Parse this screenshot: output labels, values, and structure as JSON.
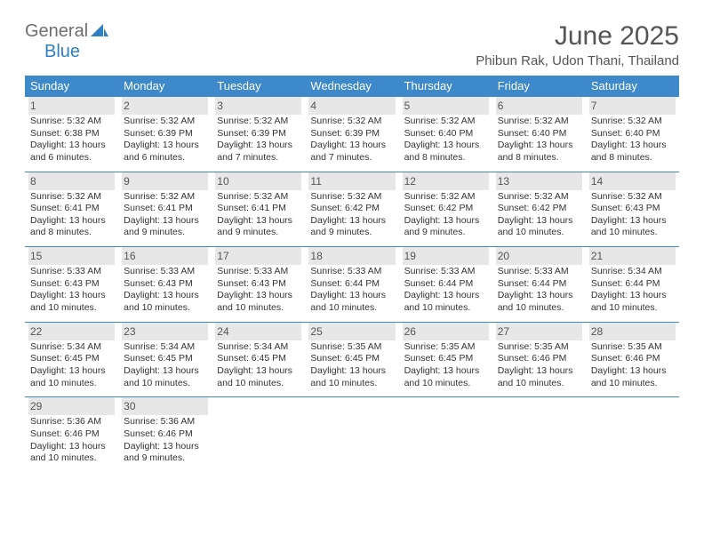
{
  "logo": {
    "text_general": "General",
    "text_blue": "Blue",
    "general_color": "#6f6f6f",
    "blue_color": "#2f7fc3",
    "icon_color": "#2f7fc3"
  },
  "title": "June 2025",
  "location": "Phibun Rak, Udon Thani, Thailand",
  "colors": {
    "header_bar": "#3d89c9",
    "day_header_bg": "#e7e7e7",
    "separator": "#3d89c9",
    "text_title": "#555555",
    "text_body": "#333333",
    "background": "#ffffff"
  },
  "fonts": {
    "title_size": 30,
    "location_size": 15,
    "weekday_size": 13,
    "daynum_size": 12,
    "body_size": 10.5
  },
  "weekdays": [
    "Sunday",
    "Monday",
    "Tuesday",
    "Wednesday",
    "Thursday",
    "Friday",
    "Saturday"
  ],
  "weeks": [
    [
      {
        "n": "1",
        "sunrise": "Sunrise: 5:32 AM",
        "sunset": "Sunset: 6:38 PM",
        "day1": "Daylight: 13 hours",
        "day2": "and 6 minutes."
      },
      {
        "n": "2",
        "sunrise": "Sunrise: 5:32 AM",
        "sunset": "Sunset: 6:39 PM",
        "day1": "Daylight: 13 hours",
        "day2": "and 6 minutes."
      },
      {
        "n": "3",
        "sunrise": "Sunrise: 5:32 AM",
        "sunset": "Sunset: 6:39 PM",
        "day1": "Daylight: 13 hours",
        "day2": "and 7 minutes."
      },
      {
        "n": "4",
        "sunrise": "Sunrise: 5:32 AM",
        "sunset": "Sunset: 6:39 PM",
        "day1": "Daylight: 13 hours",
        "day2": "and 7 minutes."
      },
      {
        "n": "5",
        "sunrise": "Sunrise: 5:32 AM",
        "sunset": "Sunset: 6:40 PM",
        "day1": "Daylight: 13 hours",
        "day2": "and 8 minutes."
      },
      {
        "n": "6",
        "sunrise": "Sunrise: 5:32 AM",
        "sunset": "Sunset: 6:40 PM",
        "day1": "Daylight: 13 hours",
        "day2": "and 8 minutes."
      },
      {
        "n": "7",
        "sunrise": "Sunrise: 5:32 AM",
        "sunset": "Sunset: 6:40 PM",
        "day1": "Daylight: 13 hours",
        "day2": "and 8 minutes."
      }
    ],
    [
      {
        "n": "8",
        "sunrise": "Sunrise: 5:32 AM",
        "sunset": "Sunset: 6:41 PM",
        "day1": "Daylight: 13 hours",
        "day2": "and 8 minutes."
      },
      {
        "n": "9",
        "sunrise": "Sunrise: 5:32 AM",
        "sunset": "Sunset: 6:41 PM",
        "day1": "Daylight: 13 hours",
        "day2": "and 9 minutes."
      },
      {
        "n": "10",
        "sunrise": "Sunrise: 5:32 AM",
        "sunset": "Sunset: 6:41 PM",
        "day1": "Daylight: 13 hours",
        "day2": "and 9 minutes."
      },
      {
        "n": "11",
        "sunrise": "Sunrise: 5:32 AM",
        "sunset": "Sunset: 6:42 PM",
        "day1": "Daylight: 13 hours",
        "day2": "and 9 minutes."
      },
      {
        "n": "12",
        "sunrise": "Sunrise: 5:32 AM",
        "sunset": "Sunset: 6:42 PM",
        "day1": "Daylight: 13 hours",
        "day2": "and 9 minutes."
      },
      {
        "n": "13",
        "sunrise": "Sunrise: 5:32 AM",
        "sunset": "Sunset: 6:42 PM",
        "day1": "Daylight: 13 hours",
        "day2": "and 10 minutes."
      },
      {
        "n": "14",
        "sunrise": "Sunrise: 5:32 AM",
        "sunset": "Sunset: 6:43 PM",
        "day1": "Daylight: 13 hours",
        "day2": "and 10 minutes."
      }
    ],
    [
      {
        "n": "15",
        "sunrise": "Sunrise: 5:33 AM",
        "sunset": "Sunset: 6:43 PM",
        "day1": "Daylight: 13 hours",
        "day2": "and 10 minutes."
      },
      {
        "n": "16",
        "sunrise": "Sunrise: 5:33 AM",
        "sunset": "Sunset: 6:43 PM",
        "day1": "Daylight: 13 hours",
        "day2": "and 10 minutes."
      },
      {
        "n": "17",
        "sunrise": "Sunrise: 5:33 AM",
        "sunset": "Sunset: 6:43 PM",
        "day1": "Daylight: 13 hours",
        "day2": "and 10 minutes."
      },
      {
        "n": "18",
        "sunrise": "Sunrise: 5:33 AM",
        "sunset": "Sunset: 6:44 PM",
        "day1": "Daylight: 13 hours",
        "day2": "and 10 minutes."
      },
      {
        "n": "19",
        "sunrise": "Sunrise: 5:33 AM",
        "sunset": "Sunset: 6:44 PM",
        "day1": "Daylight: 13 hours",
        "day2": "and 10 minutes."
      },
      {
        "n": "20",
        "sunrise": "Sunrise: 5:33 AM",
        "sunset": "Sunset: 6:44 PM",
        "day1": "Daylight: 13 hours",
        "day2": "and 10 minutes."
      },
      {
        "n": "21",
        "sunrise": "Sunrise: 5:34 AM",
        "sunset": "Sunset: 6:44 PM",
        "day1": "Daylight: 13 hours",
        "day2": "and 10 minutes."
      }
    ],
    [
      {
        "n": "22",
        "sunrise": "Sunrise: 5:34 AM",
        "sunset": "Sunset: 6:45 PM",
        "day1": "Daylight: 13 hours",
        "day2": "and 10 minutes."
      },
      {
        "n": "23",
        "sunrise": "Sunrise: 5:34 AM",
        "sunset": "Sunset: 6:45 PM",
        "day1": "Daylight: 13 hours",
        "day2": "and 10 minutes."
      },
      {
        "n": "24",
        "sunrise": "Sunrise: 5:34 AM",
        "sunset": "Sunset: 6:45 PM",
        "day1": "Daylight: 13 hours",
        "day2": "and 10 minutes."
      },
      {
        "n": "25",
        "sunrise": "Sunrise: 5:35 AM",
        "sunset": "Sunset: 6:45 PM",
        "day1": "Daylight: 13 hours",
        "day2": "and 10 minutes."
      },
      {
        "n": "26",
        "sunrise": "Sunrise: 5:35 AM",
        "sunset": "Sunset: 6:45 PM",
        "day1": "Daylight: 13 hours",
        "day2": "and 10 minutes."
      },
      {
        "n": "27",
        "sunrise": "Sunrise: 5:35 AM",
        "sunset": "Sunset: 6:46 PM",
        "day1": "Daylight: 13 hours",
        "day2": "and 10 minutes."
      },
      {
        "n": "28",
        "sunrise": "Sunrise: 5:35 AM",
        "sunset": "Sunset: 6:46 PM",
        "day1": "Daylight: 13 hours",
        "day2": "and 10 minutes."
      }
    ],
    [
      {
        "n": "29",
        "sunrise": "Sunrise: 5:36 AM",
        "sunset": "Sunset: 6:46 PM",
        "day1": "Daylight: 13 hours",
        "day2": "and 10 minutes."
      },
      {
        "n": "30",
        "sunrise": "Sunrise: 5:36 AM",
        "sunset": "Sunset: 6:46 PM",
        "day1": "Daylight: 13 hours",
        "day2": "and 9 minutes."
      },
      null,
      null,
      null,
      null,
      null
    ]
  ]
}
